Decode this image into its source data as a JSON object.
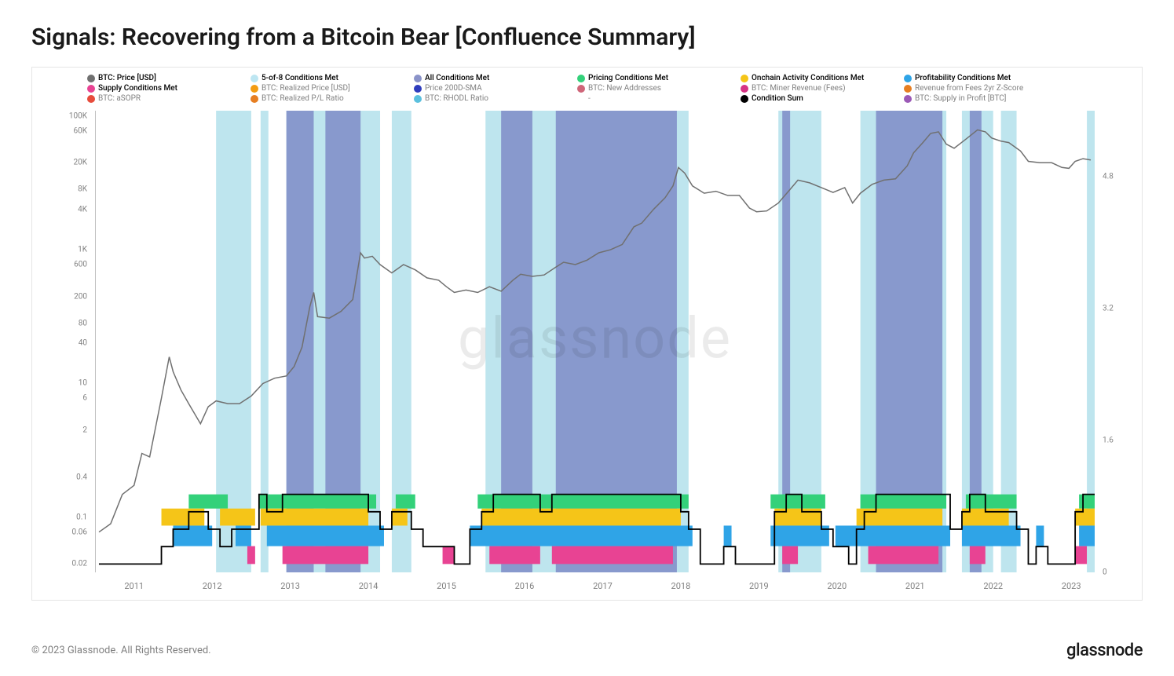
{
  "title": "Signals: Recovering from a Bitcoin Bear [Confluence Summary]",
  "copyright": "© 2023 Glassnode. All Rights Reserved.",
  "brand": "glassnode",
  "watermark": "glassnode",
  "legend": [
    {
      "label": "BTC: Price [USD]",
      "color": "#707070",
      "active": true
    },
    {
      "label": "5-of-8 Conditions Met",
      "color": "#bde6f2",
      "active": true
    },
    {
      "label": "All Conditions Met",
      "color": "#8a93c9",
      "active": true
    },
    {
      "label": "Pricing Conditions Met",
      "color": "#33d17a",
      "active": true
    },
    {
      "label": "Onchain Activity Conditions Met",
      "color": "#f5c518",
      "active": true
    },
    {
      "label": "Profitability Conditions Met",
      "color": "#2fa4e7",
      "active": true
    },
    {
      "label": "Supply Conditions Met",
      "color": "#e84393",
      "active": true
    },
    {
      "label": "BTC: Realized Price [USD]",
      "color": "#f39c12",
      "active": false
    },
    {
      "label": "Price 200D-SMA",
      "color": "#2e3cbd",
      "active": false
    },
    {
      "label": "BTC: New Addresses",
      "color": "#cf6679",
      "active": false
    },
    {
      "label": "BTC: Miner Revenue (Fees)",
      "color": "#d63384",
      "active": false
    },
    {
      "label": "Revenue from Fees 2yr Z-Score",
      "color": "#e67e22",
      "active": false
    },
    {
      "label": "BTC: aSOPR",
      "color": "#e74c3c",
      "active": false
    },
    {
      "label": "BTC: Realized P/L Ratio",
      "color": "#e67e22",
      "active": false
    },
    {
      "label": "BTC: RHODL Ratio",
      "color": "#5bc0de",
      "active": false
    },
    {
      "label": "-",
      "color": "#ffffff",
      "active": false
    },
    {
      "label": "Condition Sum",
      "color": "#000000",
      "active": true
    },
    {
      "label": "BTC: Supply in Profit [BTC]",
      "color": "#9b59b6",
      "active": false
    }
  ],
  "chart": {
    "type": "combined-log-line-with-bands",
    "background_color": "#ffffff",
    "grid_color": "#e0e0e0",
    "x_range": [
      2010.5,
      2023.3
    ],
    "x_ticks": [
      "2011",
      "2012",
      "2013",
      "2014",
      "2015",
      "2016",
      "2017",
      "2018",
      "2019",
      "2020",
      "2021",
      "2022",
      "2023"
    ],
    "y_left_scale": "log",
    "y_left_ticks": [
      {
        "v": 0.02,
        "label": "0.02"
      },
      {
        "v": 0.06,
        "label": "0.06"
      },
      {
        "v": 0.1,
        "label": "0.1"
      },
      {
        "v": 0.4,
        "label": "0.4"
      },
      {
        "v": 2,
        "label": "2"
      },
      {
        "v": 6,
        "label": "6"
      },
      {
        "v": 10,
        "label": "10"
      },
      {
        "v": 40,
        "label": "40"
      },
      {
        "v": 80,
        "label": "80"
      },
      {
        "v": 200,
        "label": "200"
      },
      {
        "v": 600,
        "label": "600"
      },
      {
        "v": 1000,
        "label": "1K"
      },
      {
        "v": 4000,
        "label": "4K"
      },
      {
        "v": 8000,
        "label": "8K"
      },
      {
        "v": 20000,
        "label": "20K"
      },
      {
        "v": 60000,
        "label": "60K"
      },
      {
        "v": 100000,
        "label": "100K"
      }
    ],
    "y_left_range": [
      0.015,
      120000
    ],
    "y_right_ticks": [
      {
        "v": 0,
        "label": "0"
      },
      {
        "v": 1.6,
        "label": "1.6"
      },
      {
        "v": 3.2,
        "label": "3.2"
      },
      {
        "v": 4.8,
        "label": "4.8"
      }
    ],
    "y_right_range": [
      0,
      5.6
    ],
    "price_line": {
      "color": "#707070",
      "width": 1.5,
      "points": [
        [
          2010.55,
          0.06
        ],
        [
          2010.7,
          0.08
        ],
        [
          2010.85,
          0.22
        ],
        [
          2011.0,
          0.3
        ],
        [
          2011.1,
          0.9
        ],
        [
          2011.2,
          0.8
        ],
        [
          2011.35,
          6
        ],
        [
          2011.45,
          25
        ],
        [
          2011.5,
          15
        ],
        [
          2011.6,
          8
        ],
        [
          2011.7,
          5
        ],
        [
          2011.85,
          2.5
        ],
        [
          2011.95,
          4.5
        ],
        [
          2012.05,
          5.5
        ],
        [
          2012.2,
          5
        ],
        [
          2012.35,
          5
        ],
        [
          2012.5,
          6.5
        ],
        [
          2012.65,
          10
        ],
        [
          2012.8,
          12
        ],
        [
          2012.95,
          13
        ],
        [
          2013.05,
          18
        ],
        [
          2013.15,
          35
        ],
        [
          2013.25,
          140
        ],
        [
          2013.3,
          230
        ],
        [
          2013.35,
          100
        ],
        [
          2013.5,
          95
        ],
        [
          2013.65,
          120
        ],
        [
          2013.8,
          180
        ],
        [
          2013.9,
          900
        ],
        [
          2013.95,
          750
        ],
        [
          2014.05,
          800
        ],
        [
          2014.15,
          600
        ],
        [
          2014.3,
          450
        ],
        [
          2014.45,
          600
        ],
        [
          2014.6,
          500
        ],
        [
          2014.75,
          380
        ],
        [
          2014.9,
          350
        ],
        [
          2015.0,
          280
        ],
        [
          2015.1,
          230
        ],
        [
          2015.25,
          250
        ],
        [
          2015.4,
          230
        ],
        [
          2015.55,
          280
        ],
        [
          2015.7,
          240
        ],
        [
          2015.85,
          350
        ],
        [
          2015.95,
          430
        ],
        [
          2016.1,
          400
        ],
        [
          2016.25,
          420
        ],
        [
          2016.4,
          550
        ],
        [
          2016.5,
          650
        ],
        [
          2016.65,
          600
        ],
        [
          2016.8,
          700
        ],
        [
          2016.95,
          900
        ],
        [
          2017.1,
          1000
        ],
        [
          2017.25,
          1200
        ],
        [
          2017.4,
          2200
        ],
        [
          2017.5,
          2500
        ],
        [
          2017.65,
          4000
        ],
        [
          2017.8,
          6000
        ],
        [
          2017.9,
          9000
        ],
        [
          2017.97,
          17000
        ],
        [
          2018.05,
          14000
        ],
        [
          2018.15,
          9000
        ],
        [
          2018.3,
          7000
        ],
        [
          2018.45,
          7500
        ],
        [
          2018.6,
          6500
        ],
        [
          2018.75,
          6500
        ],
        [
          2018.88,
          4200
        ],
        [
          2018.97,
          3700
        ],
        [
          2019.1,
          3800
        ],
        [
          2019.25,
          5000
        ],
        [
          2019.4,
          8000
        ],
        [
          2019.5,
          11000
        ],
        [
          2019.65,
          10000
        ],
        [
          2019.8,
          8500
        ],
        [
          2019.95,
          7200
        ],
        [
          2020.1,
          8500
        ],
        [
          2020.2,
          5000
        ],
        [
          2020.3,
          7000
        ],
        [
          2020.45,
          9500
        ],
        [
          2020.6,
          11000
        ],
        [
          2020.75,
          11500
        ],
        [
          2020.9,
          18000
        ],
        [
          2020.98,
          28000
        ],
        [
          2021.1,
          40000
        ],
        [
          2021.2,
          55000
        ],
        [
          2021.3,
          58000
        ],
        [
          2021.4,
          38000
        ],
        [
          2021.5,
          33000
        ],
        [
          2021.65,
          45000
        ],
        [
          2021.8,
          62000
        ],
        [
          2021.9,
          58000
        ],
        [
          2021.98,
          47000
        ],
        [
          2022.1,
          42000
        ],
        [
          2022.2,
          40000
        ],
        [
          2022.35,
          30000
        ],
        [
          2022.45,
          21000
        ],
        [
          2022.6,
          20000
        ],
        [
          2022.75,
          20000
        ],
        [
          2022.88,
          17000
        ],
        [
          2022.97,
          16500
        ],
        [
          2023.05,
          21000
        ],
        [
          2023.15,
          23000
        ],
        [
          2023.25,
          22000
        ]
      ]
    },
    "bands_5of8": {
      "color": "#a8dce8",
      "opacity": 0.75,
      "ranges": [
        [
          2012.05,
          2012.5
        ],
        [
          2012.62,
          2012.72
        ],
        [
          2012.95,
          2014.15
        ],
        [
          2014.3,
          2014.55
        ],
        [
          2015.5,
          2018.1
        ],
        [
          2019.25,
          2019.8
        ],
        [
          2020.3,
          2021.4
        ],
        [
          2021.6,
          2022.0
        ],
        [
          2022.1,
          2022.3
        ],
        [
          2023.2,
          2023.3
        ]
      ]
    },
    "bands_all": {
      "color": "#7b86c4",
      "opacity": 0.8,
      "ranges": [
        [
          2012.95,
          2013.3
        ],
        [
          2013.45,
          2013.9
        ],
        [
          2015.7,
          2016.1
        ],
        [
          2016.4,
          2017.95
        ],
        [
          2019.3,
          2019.4
        ],
        [
          2020.5,
          2021.35
        ],
        [
          2021.7,
          2021.85
        ]
      ]
    },
    "stacked_bottom": {
      "pricing": {
        "color": "#33d17a",
        "height": 0.22,
        "base": 0.135,
        "ranges": [
          [
            2011.7,
            2012.2
          ],
          [
            2012.6,
            2014.1
          ],
          [
            2014.35,
            2014.6
          ],
          [
            2015.4,
            2018.1
          ],
          [
            2019.15,
            2019.85
          ],
          [
            2020.3,
            2021.4
          ],
          [
            2021.65,
            2022.3
          ],
          [
            2023.1,
            2023.3
          ]
        ]
      },
      "onchain": {
        "color": "#f5c518",
        "height": 0.135,
        "base": 0.075,
        "ranges": [
          [
            2011.35,
            2011.9
          ],
          [
            2012.1,
            2012.55
          ],
          [
            2012.62,
            2014.0
          ],
          [
            2014.3,
            2014.5
          ],
          [
            2015.45,
            2018.0
          ],
          [
            2019.2,
            2019.8
          ],
          [
            2020.25,
            2021.35
          ],
          [
            2021.6,
            2022.2
          ],
          [
            2023.05,
            2023.3
          ]
        ]
      },
      "profitability": {
        "color": "#2fa4e7",
        "height": 0.075,
        "base": 0.037,
        "ranges": [
          [
            2011.5,
            2012.0
          ],
          [
            2012.3,
            2012.5
          ],
          [
            2012.7,
            2014.2
          ],
          [
            2015.3,
            2018.15
          ],
          [
            2018.55,
            2018.65
          ],
          [
            2019.15,
            2019.9
          ],
          [
            2019.98,
            2021.45
          ],
          [
            2021.6,
            2022.35
          ],
          [
            2022.55,
            2022.65
          ],
          [
            2023.1,
            2023.3
          ]
        ]
      },
      "supply": {
        "color": "#e84393",
        "height": 0.037,
        "base": 0.02,
        "ranges": [
          [
            2012.45,
            2012.55
          ],
          [
            2012.9,
            2014.0
          ],
          [
            2014.95,
            2015.1
          ],
          [
            2015.55,
            2016.2
          ],
          [
            2016.35,
            2017.9
          ],
          [
            2019.3,
            2019.5
          ],
          [
            2020.4,
            2021.3
          ],
          [
            2021.7,
            2021.9
          ],
          [
            2023.05,
            2023.2
          ]
        ]
      }
    },
    "condition_sum": {
      "color": "#000000",
      "width": 1.8,
      "max_display": 0.22,
      "points": [
        [
          2010.55,
          0
        ],
        [
          2011.3,
          0
        ],
        [
          2011.35,
          1
        ],
        [
          2011.5,
          2
        ],
        [
          2011.7,
          3
        ],
        [
          2011.95,
          2
        ],
        [
          2012.1,
          1
        ],
        [
          2012.25,
          2
        ],
        [
          2012.4,
          2
        ],
        [
          2012.6,
          4
        ],
        [
          2012.7,
          3
        ],
        [
          2012.9,
          4
        ],
        [
          2013.0,
          4
        ],
        [
          2013.4,
          4
        ],
        [
          2013.9,
          4
        ],
        [
          2014.0,
          3
        ],
        [
          2014.15,
          2
        ],
        [
          2014.3,
          3
        ],
        [
          2014.55,
          2
        ],
        [
          2014.7,
          1
        ],
        [
          2014.95,
          1
        ],
        [
          2015.1,
          0
        ],
        [
          2015.3,
          2
        ],
        [
          2015.45,
          3
        ],
        [
          2015.6,
          4
        ],
        [
          2015.85,
          4
        ],
        [
          2016.2,
          3
        ],
        [
          2016.35,
          4
        ],
        [
          2017.9,
          4
        ],
        [
          2018.0,
          3
        ],
        [
          2018.1,
          2
        ],
        [
          2018.25,
          0
        ],
        [
          2018.55,
          1
        ],
        [
          2018.7,
          0
        ],
        [
          2019.1,
          0
        ],
        [
          2019.2,
          3
        ],
        [
          2019.35,
          4
        ],
        [
          2019.55,
          3
        ],
        [
          2019.8,
          2
        ],
        [
          2019.95,
          1
        ],
        [
          2020.15,
          0
        ],
        [
          2020.25,
          2
        ],
        [
          2020.35,
          3
        ],
        [
          2020.5,
          4
        ],
        [
          2021.35,
          4
        ],
        [
          2021.45,
          2
        ],
        [
          2021.6,
          3
        ],
        [
          2021.7,
          4
        ],
        [
          2021.9,
          3
        ],
        [
          2022.1,
          3
        ],
        [
          2022.3,
          2
        ],
        [
          2022.45,
          0
        ],
        [
          2022.55,
          1
        ],
        [
          2022.7,
          0
        ],
        [
          2023.0,
          0
        ],
        [
          2023.05,
          3
        ],
        [
          2023.15,
          4
        ],
        [
          2023.3,
          4
        ]
      ]
    }
  }
}
